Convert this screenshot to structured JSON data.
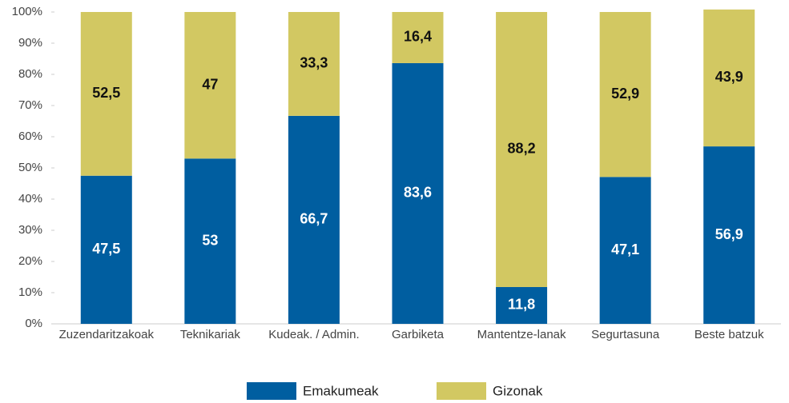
{
  "chart_data": {
    "type": "stacked_bar",
    "categories": [
      "Zuzendaritzakoak",
      "Teknikariak",
      "Kudeak. / Admin.",
      "Garbiketa",
      "Mantentze-lanak",
      "Segurtasuna",
      "Beste batzuk"
    ],
    "series": [
      {
        "name": "Emakumeak",
        "color": "#005ea0",
        "values": [
          47.5,
          53,
          66.7,
          83.6,
          11.8,
          47.1,
          56.9
        ],
        "value_labels": [
          "47,5",
          "53",
          "66,7",
          "83,6",
          "11,8",
          "47,1",
          "56,9"
        ]
      },
      {
        "name": "Gizonak",
        "color": "#d2c862",
        "values": [
          52.5,
          47,
          33.3,
          16.4,
          88.2,
          52.9,
          43.9
        ],
        "value_labels": [
          "52,5",
          "47",
          "33,3",
          "16,4",
          "88,2",
          "52,9",
          "43,9"
        ]
      }
    ],
    "ylim": [
      0,
      100
    ],
    "yticks": [
      {
        "value": 0,
        "label": "0%"
      },
      {
        "value": 10,
        "label": "10%"
      },
      {
        "value": 20,
        "label": "20%"
      },
      {
        "value": 30,
        "label": "30%"
      },
      {
        "value": 40,
        "label": "40%"
      },
      {
        "value": 50,
        "label": "50%"
      },
      {
        "value": 60,
        "label": "60%"
      },
      {
        "value": 70,
        "label": "70%"
      },
      {
        "value": 80,
        "label": "80%"
      },
      {
        "value": 90,
        "label": "90%"
      },
      {
        "value": 100,
        "label": "100%"
      }
    ],
    "legend": "bottom"
  }
}
